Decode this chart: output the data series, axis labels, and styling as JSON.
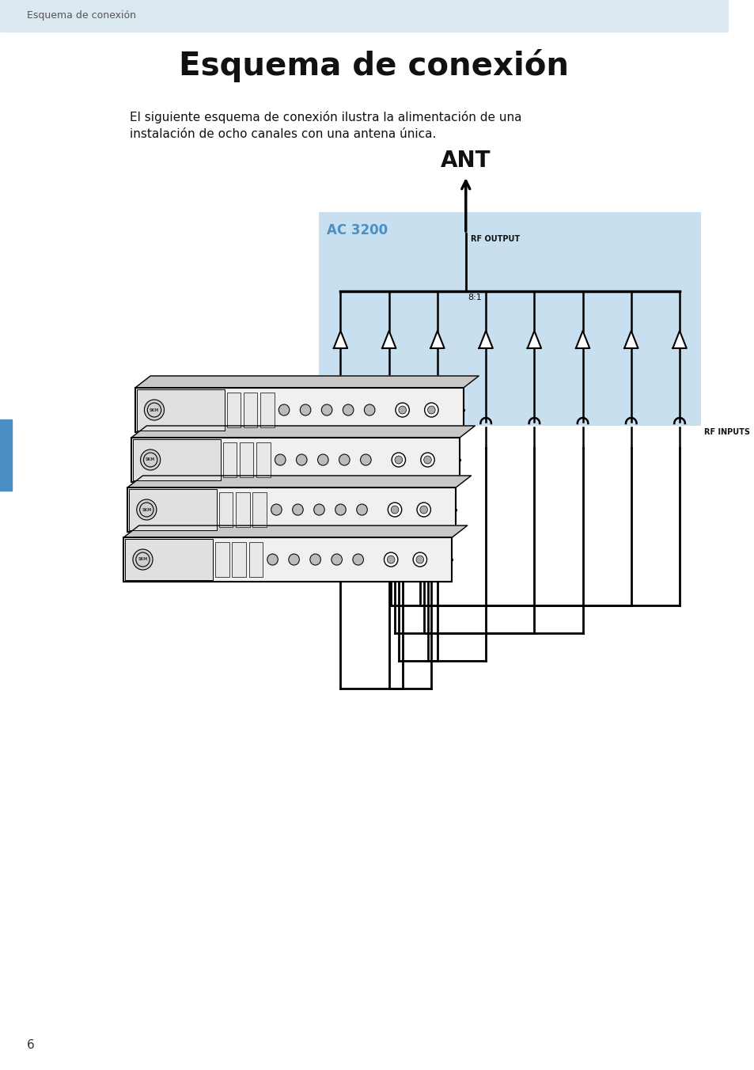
{
  "page_title": "Esquema de conexión",
  "header_bg": "#dce8f0",
  "header_text": "Esquema de conexión",
  "header_text_color": "#555555",
  "main_title": "Esquema de conexión",
  "subtitle_line1": "El siguiente esquema de conexión ilustra la alimentación de una",
  "subtitle_line2": "instalación de ocho canales con una antena única.",
  "ac3200_bg": "#c8dff0",
  "ac3200_label": "AC 3200",
  "ac3200_label_color": "#4a90c4",
  "ant_label": "ANT",
  "rf_output_label": "RF OUTPUT",
  "rf_inputs_label": "RF INPUTS",
  "combiner_label": "8:1",
  "page_number": "6",
  "bg_color": "#ffffff",
  "line_color": "#000000",
  "num_inputs": 8,
  "blue_bar_color": "#4a90c4"
}
